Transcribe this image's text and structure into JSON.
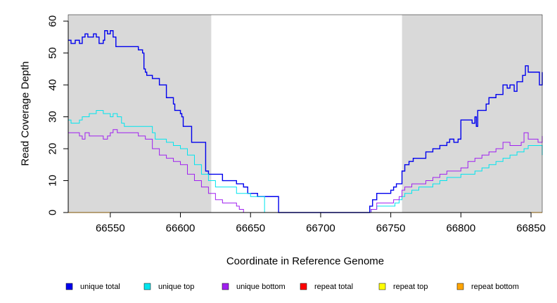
{
  "chart_data": {
    "type": "line",
    "title": "",
    "xlabel": "Coordinate in Reference Genome",
    "ylabel": "Read Coverage Depth",
    "xlim": [
      66520,
      66858
    ],
    "ylim": [
      0,
      62
    ],
    "x_ticks": [
      66550,
      66600,
      66650,
      66700,
      66750,
      66800,
      66850
    ],
    "y_ticks": [
      0,
      10,
      20,
      30,
      40,
      50,
      60
    ],
    "shaded_regions": [
      [
        66520,
        66622
      ],
      [
        66758,
        66858
      ]
    ],
    "shade_color": "#d9d9d9",
    "grid": false,
    "legend_position": "bottom",
    "series": [
      {
        "name": "unique total",
        "color": "#0000ee",
        "x": [
          66520,
          66522,
          66525,
          66528,
          66530,
          66532,
          66534,
          66538,
          66540,
          66542,
          66545,
          66546,
          66548,
          66550,
          66552,
          66554,
          66556,
          66558,
          66560,
          66565,
          66570,
          66573,
          66574,
          66575,
          66576,
          66578,
          66580,
          66582,
          66585,
          66590,
          66592,
          66595,
          66596,
          66598,
          66600,
          66601,
          66602,
          66608,
          66612,
          66618,
          66620,
          66625,
          66630,
          66640,
          66645,
          66648,
          66655,
          66660,
          66670,
          66700,
          66734,
          66735,
          66737,
          66740,
          66745,
          66750,
          66752,
          66754,
          66755,
          66758,
          66760,
          66763,
          66766,
          66770,
          66775,
          66780,
          66785,
          66788,
          66790,
          66792,
          66795,
          66798,
          66800,
          66805,
          66808,
          66810,
          66811,
          66812,
          66815,
          66818,
          66820,
          66825,
          66828,
          66830,
          66833,
          66835,
          66838,
          66840,
          66842,
          66844,
          66846,
          66848,
          66856,
          66858
        ],
        "y": [
          54,
          53,
          54,
          53,
          55,
          56,
          55,
          56,
          55,
          53,
          54,
          57,
          56,
          57,
          55,
          52,
          52,
          52,
          52,
          52,
          51,
          50,
          45,
          44,
          43,
          43,
          42,
          42,
          40,
          36,
          36,
          34,
          32,
          32,
          31,
          30,
          27,
          22,
          22,
          13,
          12,
          12,
          10,
          9,
          8,
          6,
          5,
          5,
          0,
          0,
          0,
          2,
          4,
          6,
          6,
          7,
          8,
          9,
          9,
          13,
          15,
          16,
          17,
          17,
          19,
          20,
          21,
          21,
          22,
          23,
          22,
          23,
          29,
          29,
          28,
          30,
          27,
          32,
          32,
          34,
          36,
          37,
          37,
          40,
          39,
          40,
          38,
          41,
          41,
          43,
          46,
          44,
          40,
          44
        ]
      },
      {
        "name": "unique top",
        "color": "#00e5ee",
        "x": [
          66520,
          66522,
          66528,
          66530,
          66535,
          66540,
          66545,
          66550,
          66552,
          66555,
          66558,
          66560,
          66565,
          66575,
          66580,
          66582,
          66585,
          66590,
          66595,
          66600,
          66605,
          66610,
          66615,
          66620,
          66625,
          66640,
          66645,
          66650,
          66655,
          66660,
          66670,
          66700,
          66734,
          66736,
          66740,
          66750,
          66753,
          66756,
          66758,
          66760,
          66765,
          66770,
          66775,
          66780,
          66785,
          66790,
          66795,
          66800,
          66805,
          66810,
          66815,
          66820,
          66825,
          66830,
          66835,
          66840,
          66845,
          66848,
          66858
        ],
        "y": [
          29,
          28,
          29,
          30,
          31,
          32,
          31,
          30,
          31,
          30,
          28,
          27,
          27,
          27,
          25,
          23,
          23,
          22,
          21,
          20,
          18,
          15,
          12,
          10,
          8,
          6,
          6,
          5,
          5,
          0,
          0,
          0,
          0,
          1,
          2,
          2,
          3,
          4,
          5,
          6,
          7,
          8,
          8,
          9,
          10,
          11,
          11,
          12,
          12,
          13,
          14,
          15,
          16,
          17,
          18,
          19,
          20,
          21,
          18
        ]
      },
      {
        "name": "unique bottom",
        "color": "#a020f0",
        "x": [
          66520,
          66528,
          66530,
          66532,
          66535,
          66540,
          66545,
          66548,
          66550,
          66552,
          66555,
          66560,
          66570,
          66575,
          66580,
          66585,
          66590,
          66595,
          66600,
          66605,
          66610,
          66615,
          66620,
          66625,
          66630,
          66640,
          66642,
          66645,
          66650,
          66700,
          66734,
          66736,
          66740,
          66750,
          66752,
          66756,
          66758,
          66760,
          66765,
          66770,
          66775,
          66780,
          66785,
          66790,
          66795,
          66800,
          66805,
          66810,
          66815,
          66820,
          66825,
          66830,
          66835,
          66840,
          66843,
          66845,
          66848,
          66855,
          66858
        ],
        "y": [
          25,
          24,
          23,
          25,
          24,
          24,
          23,
          24,
          25,
          26,
          25,
          25,
          24,
          23,
          20,
          18,
          17,
          16,
          15,
          12,
          10,
          8,
          6,
          4,
          3,
          2,
          1,
          0,
          0,
          0,
          0,
          1,
          3,
          3,
          4,
          5,
          7,
          8,
          9,
          9,
          10,
          11,
          12,
          13,
          13,
          14,
          16,
          17,
          18,
          19,
          20,
          22,
          21,
          21,
          22,
          25,
          23,
          22,
          24
        ]
      },
      {
        "name": "repeat total",
        "color": "#ff0000",
        "x": [
          66520,
          66858
        ],
        "y": [
          0,
          0
        ]
      },
      {
        "name": "repeat top",
        "color": "#ffff00",
        "x": [
          66520,
          66858
        ],
        "y": [
          0,
          0
        ]
      },
      {
        "name": "repeat bottom",
        "color": "#ffa500",
        "x": [
          66520,
          66858
        ],
        "y": [
          0,
          0
        ]
      }
    ]
  }
}
